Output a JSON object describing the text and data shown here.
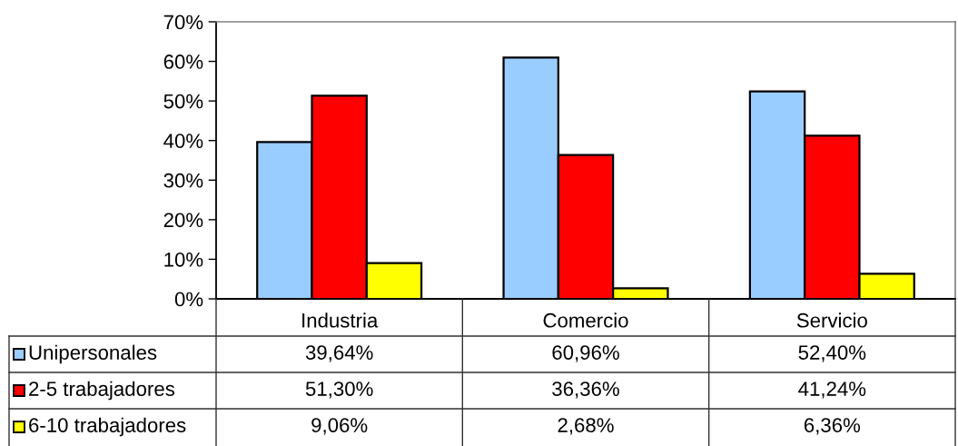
{
  "chart_data": {
    "type": "bar",
    "categories": [
      "Industria",
      "Comercio",
      "Servicio"
    ],
    "series": [
      {
        "name": "Unipersonales",
        "color": "#99ccff",
        "values": [
          39.64,
          60.96,
          52.4
        ],
        "value_labels": [
          "39,64%",
          "60,96%",
          "52,40%"
        ]
      },
      {
        "name": "2-5 trabajadores",
        "color": "#ff0000",
        "values": [
          51.3,
          36.36,
          41.24
        ],
        "value_labels": [
          "51,30%",
          "36,36%",
          "41,24%"
        ]
      },
      {
        "name": "6-10 trabajadores",
        "color": "#ffff00",
        "values": [
          9.06,
          2.68,
          6.36
        ],
        "value_labels": [
          "9,06%",
          "2,68%",
          "6,36%"
        ]
      }
    ],
    "ylim": [
      0,
      70
    ],
    "yticks": [
      {
        "value": 0,
        "label": "0%"
      },
      {
        "value": 10,
        "label": "10%"
      },
      {
        "value": 20,
        "label": "20%"
      },
      {
        "value": 30,
        "label": "30%"
      },
      {
        "value": 40,
        "label": "40%"
      },
      {
        "value": 50,
        "label": "50%"
      },
      {
        "value": 60,
        "label": "60%"
      },
      {
        "value": 70,
        "label": "70%"
      }
    ],
    "legend": "bottom left",
    "grid": false
  }
}
